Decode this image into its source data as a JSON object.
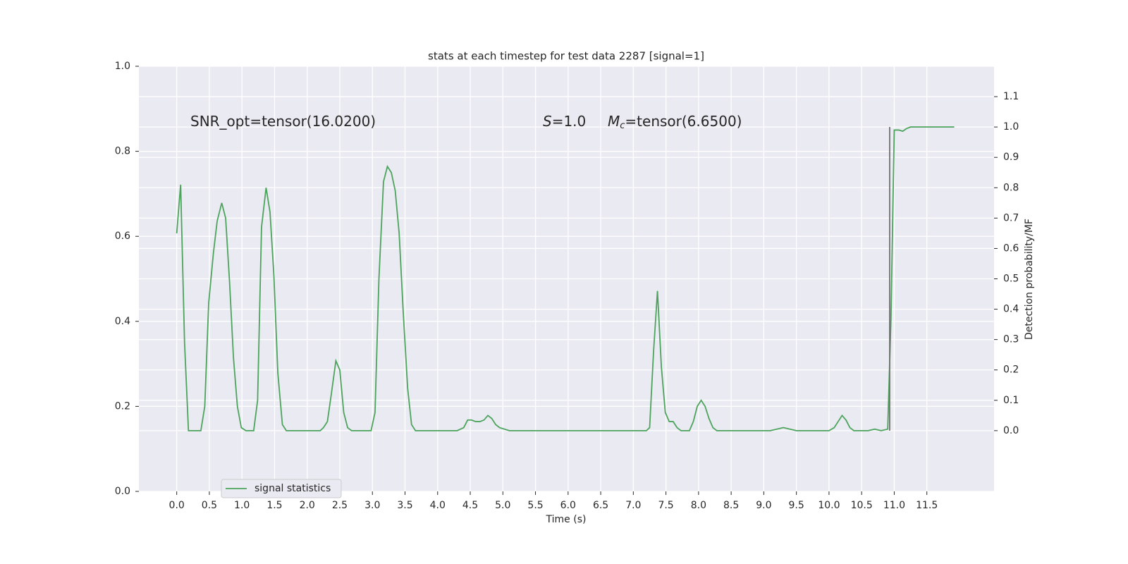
{
  "chart_data": {
    "type": "line",
    "title": "stats at each timestep for test data 2287 [signal=1]",
    "xlabel": "Time (s)",
    "y2label": "Detection probability/MF",
    "annotations": [
      {
        "text": "SNR_opt=tensor(16.0200)"
      },
      {
        "italic": "S",
        "text": "=1.0"
      },
      {
        "italic": "M",
        "sub": "c",
        "text": "=tensor(6.6500)"
      }
    ],
    "x": [
      0.0,
      0.06,
      0.12,
      0.18,
      0.25,
      0.37,
      0.43,
      0.49,
      0.56,
      0.62,
      0.69,
      0.75,
      0.81,
      0.87,
      0.93,
      0.99,
      1.06,
      1.18,
      1.24,
      1.3,
      1.37,
      1.43,
      1.49,
      1.55,
      1.62,
      1.68,
      1.8,
      2.2,
      2.25,
      2.31,
      2.37,
      2.44,
      2.5,
      2.56,
      2.62,
      2.68,
      2.9,
      2.98,
      3.04,
      3.1,
      3.17,
      3.23,
      3.29,
      3.35,
      3.41,
      3.47,
      3.54,
      3.6,
      3.66,
      3.8,
      4.1,
      4.3,
      4.4,
      4.46,
      4.52,
      4.58,
      4.65,
      4.71,
      4.77,
      4.83,
      4.89,
      4.95,
      5.1,
      5.9,
      6.0,
      7.2,
      7.25,
      7.31,
      7.37,
      7.43,
      7.49,
      7.55,
      7.61,
      7.67,
      7.73,
      7.79,
      7.86,
      7.92,
      7.98,
      8.04,
      8.1,
      8.16,
      8.22,
      8.28,
      8.4,
      9.1,
      9.3,
      9.5,
      10.0,
      10.08,
      10.14,
      10.2,
      10.26,
      10.32,
      10.38,
      10.6,
      10.7,
      10.8,
      10.9,
      10.95,
      11.0,
      11.07,
      11.13,
      11.19,
      11.25,
      11.37,
      11.55,
      11.92
    ],
    "series": [
      {
        "name": "signal statistics",
        "color": "#4ca45c",
        "axis": "y2",
        "values": [
          0.65,
          0.81,
          0.29,
          0.0,
          0.0,
          0.0,
          0.08,
          0.42,
          0.58,
          0.69,
          0.75,
          0.7,
          0.49,
          0.24,
          0.08,
          0.01,
          0.0,
          0.0,
          0.1,
          0.67,
          0.8,
          0.72,
          0.51,
          0.19,
          0.02,
          0.0,
          0.0,
          0.0,
          0.01,
          0.03,
          0.12,
          0.23,
          0.2,
          0.06,
          0.01,
          0.0,
          0.0,
          0.0,
          0.06,
          0.5,
          0.82,
          0.87,
          0.85,
          0.79,
          0.65,
          0.4,
          0.14,
          0.02,
          0.0,
          0.0,
          0.0,
          0.0,
          0.01,
          0.035,
          0.035,
          0.03,
          0.03,
          0.035,
          0.05,
          0.04,
          0.02,
          0.01,
          0.0,
          0.0,
          0.0,
          0.0,
          0.01,
          0.26,
          0.46,
          0.21,
          0.06,
          0.03,
          0.03,
          0.01,
          0.0,
          0.0,
          0.0,
          0.03,
          0.08,
          0.1,
          0.08,
          0.04,
          0.01,
          0.0,
          0.0,
          0.0,
          0.01,
          0.0,
          0.0,
          0.01,
          0.03,
          0.05,
          0.035,
          0.01,
          0.0,
          0.0,
          0.005,
          0.0,
          0.005,
          0.37,
          0.99,
          0.99,
          0.986,
          0.995,
          1.0,
          1.0,
          1.0,
          1.0
        ]
      }
    ],
    "vline": {
      "x": 10.93,
      "y": [
        0.0,
        1.0
      ],
      "color": "#707070"
    },
    "xlim": [
      -0.58,
      12.53
    ],
    "xticks": [
      {
        "value": 0,
        "label": "0.0"
      },
      0.5,
      {
        "value": 1,
        "label": "1.0"
      },
      1.5,
      {
        "value": 2,
        "label": "2.0"
      },
      2.5,
      {
        "value": 3,
        "label": "3.0"
      },
      3.5,
      {
        "value": 4,
        "label": "4.0"
      },
      4.5,
      {
        "value": 5,
        "label": "5.0"
      },
      5.5,
      {
        "value": 6,
        "label": "6.0"
      },
      6.5,
      {
        "value": 7,
        "label": "7.0"
      },
      7.5,
      {
        "value": 8,
        "label": "8.0"
      },
      8.5,
      {
        "value": 9,
        "label": "9.0"
      },
      9.5,
      {
        "value": 10,
        "label": "10.0"
      },
      10.5,
      {
        "value": 11,
        "label": "11.0"
      },
      11.5
    ],
    "ylim": [
      0,
      1
    ],
    "yticks": [
      {
        "value": 0,
        "label": "0.0"
      },
      0.2,
      0.4,
      0.6,
      0.8,
      {
        "value": 1,
        "label": "1.0"
      }
    ],
    "y2lim": [
      -0.2,
      1.2
    ],
    "y2ticks": [
      {
        "value": 0,
        "label": "0.0"
      },
      0.1,
      0.2,
      0.3,
      0.4,
      0.5,
      0.6,
      0.7,
      0.8,
      0.9,
      {
        "value": 1,
        "label": "1.0"
      },
      1.1
    ],
    "grid": true,
    "legend_loc": "lower left"
  }
}
